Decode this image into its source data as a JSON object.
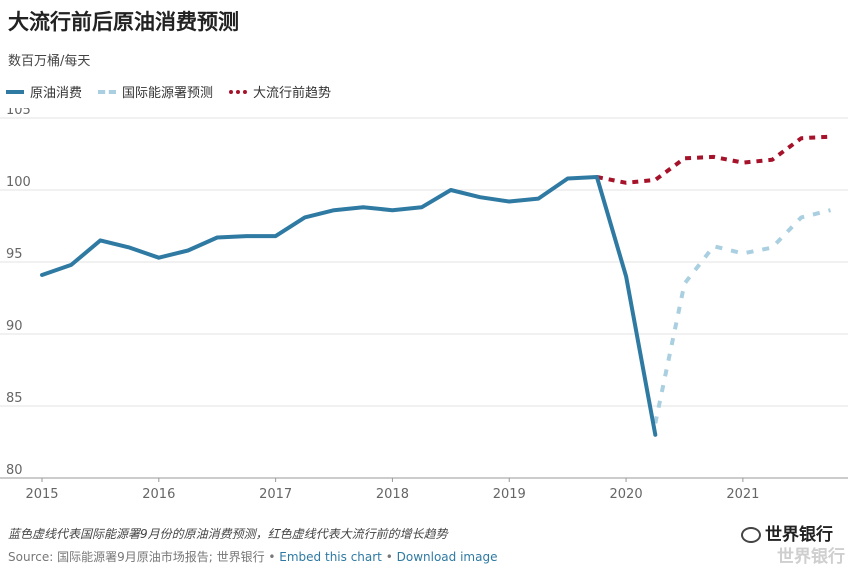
{
  "header": {
    "title": "大流行前后原油消费预测",
    "subtitle": "数百万桶/每天"
  },
  "legend": {
    "items": [
      {
        "label": "原油消费",
        "color": "#2f7aa3",
        "style": "solid"
      },
      {
        "label": "国际能源署预测",
        "color": "#a9cfe0",
        "style": "dashed"
      },
      {
        "label": "大流行前趋势",
        "color": "#a5122a",
        "style": "dotted"
      }
    ]
  },
  "footer": {
    "note": "蓝色虚线代表国际能源署9月份的原油消费预测，红色虚线代表大流行前的增长趋势",
    "source_prefix": "Source: 国际能源署9月原油市场报告; 世界银行 • ",
    "embed_link": "Embed this chart",
    "separator": " • ",
    "download_link": "Download image",
    "watermark": "世界银行",
    "watermark_shadow": "世界银行"
  },
  "chart_data": {
    "type": "line",
    "ylim": [
      80,
      105
    ],
    "yticks": [
      80,
      85,
      90,
      95,
      100,
      105
    ],
    "xlim": [
      2015,
      2021.9
    ],
    "xticks": [
      2015,
      2016,
      2017,
      2018,
      2019,
      2020,
      2021
    ],
    "grid": "horizontal",
    "legend_placement": "top-left",
    "series": [
      {
        "name": "原油消费",
        "color": "#2f7aa3",
        "style": "solid",
        "x": [
          2015.0,
          2015.25,
          2015.5,
          2015.75,
          2016.0,
          2016.25,
          2016.5,
          2016.75,
          2017.0,
          2017.25,
          2017.5,
          2017.75,
          2018.0,
          2018.25,
          2018.5,
          2018.75,
          2019.0,
          2019.25,
          2019.5,
          2019.75,
          2020.0,
          2020.25
        ],
        "y": [
          94.1,
          94.8,
          96.5,
          96.0,
          95.3,
          95.8,
          96.7,
          96.8,
          96.8,
          98.1,
          98.6,
          98.8,
          98.6,
          98.8,
          100.0,
          99.5,
          99.2,
          99.4,
          100.8,
          100.9,
          94.0,
          83.0
        ]
      },
      {
        "name": "国际能源署预测",
        "color": "#a9cfe0",
        "style": "dashed",
        "x": [
          2020.25,
          2020.5,
          2020.75,
          2021.0,
          2021.25,
          2021.5,
          2021.75
        ],
        "y": [
          83.8,
          93.5,
          96.1,
          95.6,
          96.0,
          98.1,
          98.6
        ]
      },
      {
        "name": "大流行前趋势",
        "color": "#a5122a",
        "style": "dotted",
        "x": [
          2019.75,
          2020.0,
          2020.25,
          2020.5,
          2020.75,
          2021.0,
          2021.25,
          2021.5,
          2021.75
        ],
        "y": [
          100.9,
          100.5,
          100.7,
          102.2,
          102.3,
          101.9,
          102.1,
          103.6,
          103.7
        ]
      }
    ]
  }
}
